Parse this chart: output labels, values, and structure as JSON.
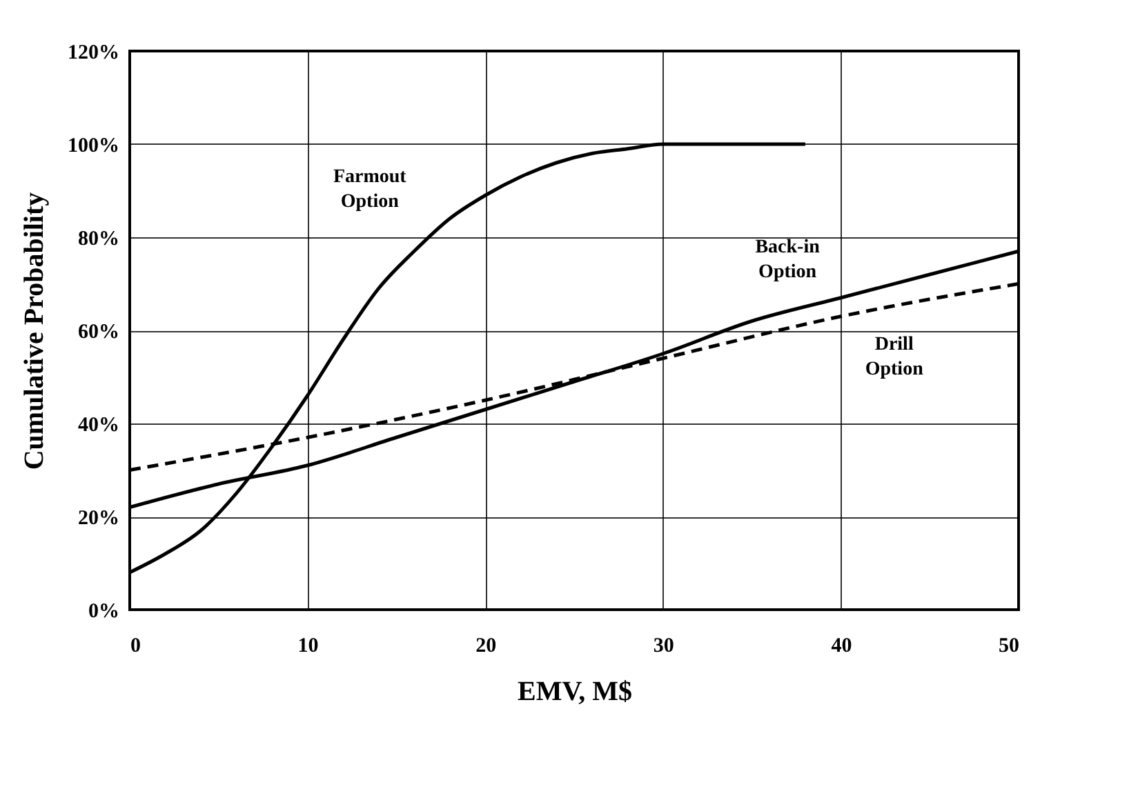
{
  "chart_data": {
    "type": "line",
    "xlabel": "EMV, M$",
    "ylabel": "Cumulative Probability",
    "xlim": [
      0,
      50
    ],
    "xticks": [
      0,
      10,
      20,
      30,
      40,
      50
    ],
    "ylim": [
      0,
      120
    ],
    "yticks": [
      {
        "value": 0,
        "label": "0%"
      },
      {
        "value": 20,
        "label": "20%"
      },
      {
        "value": 40,
        "label": "40%"
      },
      {
        "value": 60,
        "label": "60%"
      },
      {
        "value": 80,
        "label": "80%"
      },
      {
        "value": 100,
        "label": "100%"
      },
      {
        "value": 120,
        "label": "120%"
      }
    ],
    "grid": true,
    "marker": "none",
    "series": [
      {
        "name": "Farmout Option",
        "color": "#000000",
        "line_style": "solid",
        "x": [
          0,
          2,
          4,
          6,
          8,
          10,
          12,
          14,
          16,
          18,
          20,
          22,
          24,
          26,
          28,
          30,
          34,
          38
        ],
        "values": [
          8,
          12,
          17,
          25,
          35,
          46,
          58,
          69,
          77,
          84,
          89,
          93,
          96,
          98,
          99,
          100,
          100,
          100
        ]
      },
      {
        "name": "Back-in Option",
        "color": "#000000",
        "line_style": "solid",
        "x": [
          0,
          5,
          10,
          15,
          20,
          25,
          30,
          35,
          40,
          45,
          50
        ],
        "values": [
          22,
          27,
          31,
          37,
          43,
          49,
          55,
          62,
          67,
          72,
          77
        ]
      },
      {
        "name": "Drill Option",
        "color": "#000000",
        "line_style": "dashed",
        "x": [
          0,
          10,
          20,
          30,
          40,
          50
        ],
        "values": [
          30,
          37,
          45,
          54,
          63,
          70
        ]
      }
    ]
  }
}
